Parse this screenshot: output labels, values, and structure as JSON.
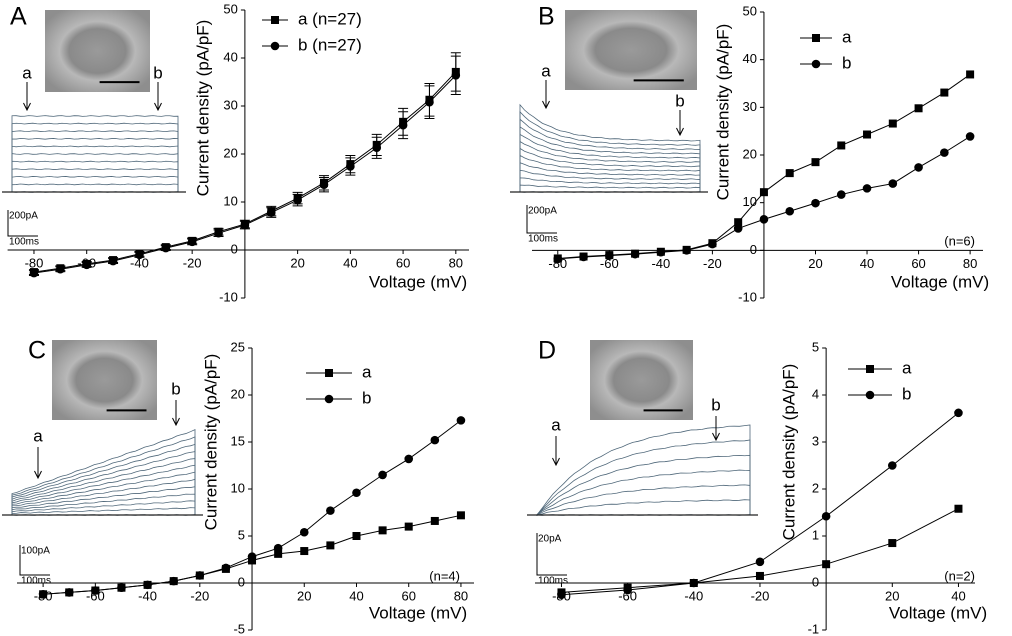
{
  "chart_data": [
    {
      "type": "line",
      "panel": "A",
      "x_label": "Voltage (mV)",
      "y_label": "Current density (pA/pF)",
      "x": [
        -80,
        -70,
        -60,
        -50,
        -40,
        -30,
        -20,
        -10,
        0,
        10,
        20,
        30,
        40,
        50,
        60,
        70,
        80
      ],
      "series": [
        {
          "name": "a (n=27)",
          "marker": "square",
          "color": "#000000",
          "values": [
            -4.6,
            -3.8,
            -2.9,
            -2.1,
            -0.8,
            0.6,
            1.9,
            3.8,
            5.4,
            8.1,
            10.8,
            14,
            17.9,
            21.9,
            26.7,
            31.3,
            37.1
          ],
          "errors": [
            0.5,
            0.5,
            0.5,
            0.5,
            0.5,
            0.5,
            0.6,
            0.7,
            0.8,
            1.0,
            1.2,
            1.5,
            1.8,
            2.2,
            2.8,
            3.4,
            4.0
          ]
        },
        {
          "name": "b (n=27)",
          "marker": "circle",
          "color": "#000000",
          "values": [
            -4.8,
            -4.0,
            -3.1,
            -2.3,
            -1.0,
            0.4,
            1.7,
            3.5,
            5.2,
            7.8,
            10.4,
            13.6,
            17.4,
            21.3,
            26.0,
            30.8,
            36.4
          ],
          "errors": [
            0.5,
            0.5,
            0.5,
            0.5,
            0.5,
            0.5,
            0.6,
            0.7,
            0.8,
            1.0,
            1.2,
            1.5,
            1.8,
            2.2,
            2.8,
            3.4,
            4.0
          ]
        }
      ],
      "xlim": [
        -90,
        85
      ],
      "ylim": [
        -10,
        50
      ],
      "xticks": [
        -80,
        -60,
        -40,
        -20,
        20,
        40,
        60,
        80
      ],
      "yticks": [
        -10,
        0,
        10,
        20,
        30,
        40,
        50
      ],
      "inset": {
        "arrow_labels": [
          "a",
          "b"
        ],
        "scale_current": "200pA",
        "scale_time": "100ms"
      }
    },
    {
      "type": "line",
      "panel": "B",
      "x_label": "Voltage (mV)",
      "y_label": "Current density (pA/pF)",
      "note": "(n=6)",
      "x": [
        -80,
        -70,
        -60,
        -50,
        -40,
        -30,
        -20,
        -10,
        0,
        10,
        20,
        30,
        40,
        50,
        60,
        70,
        80
      ],
      "series": [
        {
          "name": "a",
          "marker": "square",
          "color": "#000000",
          "values": [
            -1.7,
            -1.3,
            -1.0,
            -0.7,
            -0.3,
            0.1,
            1.5,
            5.9,
            12.2,
            16.2,
            18.5,
            22,
            24.3,
            26.6,
            29.8,
            33.1,
            36.9
          ]
        },
        {
          "name": "b",
          "marker": "circle",
          "color": "#000000",
          "values": [
            -1.8,
            -1.4,
            -1.1,
            -0.8,
            -0.4,
            0,
            1.3,
            4.6,
            6.5,
            8.2,
            9.9,
            11.7,
            13,
            14,
            17.4,
            20.5,
            23.9
          ]
        }
      ],
      "xlim": [
        -90,
        85
      ],
      "ylim": [
        -10,
        50
      ],
      "xticks": [
        -80,
        -60,
        -40,
        -20,
        20,
        40,
        60,
        80
      ],
      "yticks": [
        -10,
        0,
        10,
        20,
        30,
        40,
        50
      ],
      "inset": {
        "arrow_labels": [
          "a",
          "b"
        ],
        "scale_current": "200pA",
        "scale_time": "100ms"
      }
    },
    {
      "type": "line",
      "panel": "C",
      "x_label": "Voltage (mV)",
      "y_label": "Current density (pA/pF)",
      "note": "(n=4)",
      "x": [
        -80,
        -70,
        -60,
        -50,
        -40,
        -30,
        -20,
        -10,
        0,
        10,
        20,
        30,
        40,
        50,
        60,
        70,
        80
      ],
      "series": [
        {
          "name": "a",
          "marker": "square",
          "color": "#000000",
          "values": [
            -1.2,
            -1.0,
            -0.8,
            -0.5,
            -0.2,
            0.2,
            0.8,
            1.5,
            2.4,
            3.1,
            3.4,
            4.0,
            5.0,
            5.6,
            6.0,
            6.6,
            7.2
          ]
        },
        {
          "name": "b",
          "marker": "circle",
          "color": "#000000",
          "values": [
            -1.2,
            -1.0,
            -0.8,
            -0.5,
            -0.2,
            0.2,
            0.8,
            1.6,
            2.8,
            3.7,
            5.4,
            7.7,
            9.6,
            11.5,
            13.2,
            15.2,
            17.3
          ]
        }
      ],
      "xlim": [
        -90,
        85
      ],
      "ylim": [
        -5,
        25
      ],
      "xticks": [
        -80,
        -60,
        -40,
        -20,
        20,
        40,
        60,
        80
      ],
      "yticks": [
        -5,
        0,
        5,
        10,
        15,
        20,
        25
      ],
      "inset": {
        "arrow_labels": [
          "a",
          "b"
        ],
        "scale_current": "100pA",
        "scale_time": "100ms"
      }
    },
    {
      "type": "line",
      "panel": "D",
      "x_label": "Voltage (mV)",
      "y_label": "Current density (pA/pF)",
      "note": "(n=2)",
      "x": [
        -80,
        -60,
        -40,
        -20,
        0,
        20,
        40
      ],
      "series": [
        {
          "name": "a",
          "marker": "square",
          "color": "#000000",
          "values": [
            -0.2,
            -0.1,
            0,
            0.15,
            0.4,
            0.85,
            1.58
          ]
        },
        {
          "name": "b",
          "marker": "circle",
          "color": "#000000",
          "values": [
            -0.25,
            -0.15,
            0,
            0.45,
            1.42,
            2.5,
            3.62
          ]
        }
      ],
      "xlim": [
        -88,
        45
      ],
      "ylim": [
        -1,
        5
      ],
      "xticks": [
        -80,
        -60,
        -40,
        -20,
        20,
        40
      ],
      "yticks": [
        -1,
        0,
        1,
        2,
        3,
        4,
        5
      ],
      "inset": {
        "arrow_labels": [
          "a",
          "b"
        ],
        "scale_current": "20pA",
        "scale_time": "100ms"
      }
    }
  ]
}
